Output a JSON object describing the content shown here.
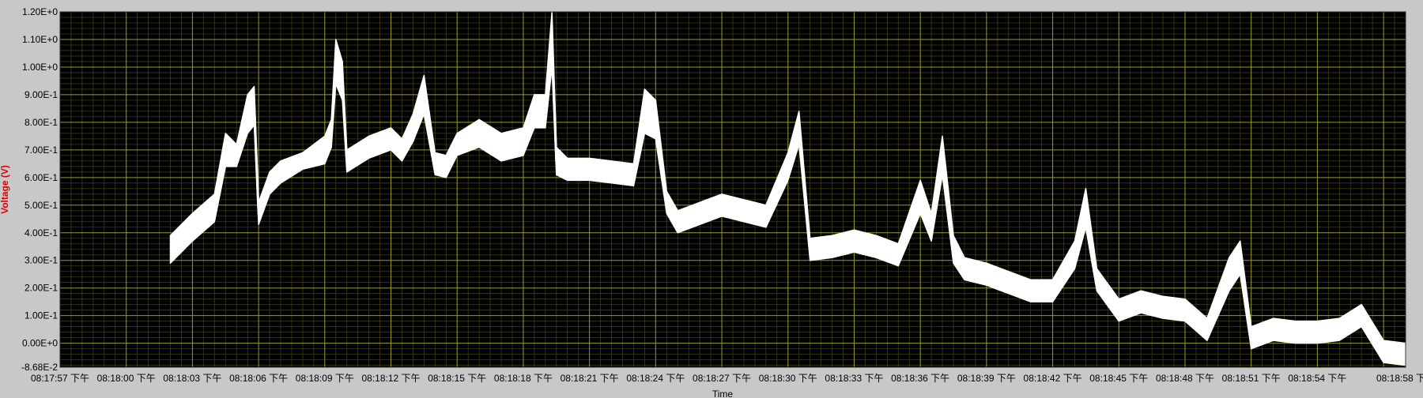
{
  "chart_data": {
    "type": "line",
    "title": "",
    "xlabel": "Time",
    "ylabel": "Voltage (V)",
    "ylim": [
      -0.0868,
      1.2
    ],
    "y_ticks": [
      {
        "value": 1.2,
        "label": "1.20E+0"
      },
      {
        "value": 1.1,
        "label": "1.10E+0"
      },
      {
        "value": 1.0,
        "label": "1.00E+0"
      },
      {
        "value": 0.9,
        "label": "9.00E-1"
      },
      {
        "value": 0.8,
        "label": "8.00E-1"
      },
      {
        "value": 0.7,
        "label": "7.00E-1"
      },
      {
        "value": 0.6,
        "label": "6.00E-1"
      },
      {
        "value": 0.5,
        "label": "5.00E-1"
      },
      {
        "value": 0.4,
        "label": "4.00E-1"
      },
      {
        "value": 0.3,
        "label": "3.00E-1"
      },
      {
        "value": 0.2,
        "label": "2.00E-1"
      },
      {
        "value": 0.1,
        "label": "1.00E-1"
      },
      {
        "value": 0.0,
        "label": "0.00E+0"
      },
      {
        "value": -0.0868,
        "label": "-8.68E-2"
      }
    ],
    "x_ticks": [
      "08:17:57 下午",
      "08:18:00 下午",
      "08:18:03 下午",
      "08:18:06 下午",
      "08:18:09 下午",
      "08:18:12 下午",
      "08:18:15 下午",
      "08:18:18 下午",
      "08:18:21 下午",
      "08:18:24 下午",
      "08:18:27 下午",
      "08:18:30 下午",
      "08:18:33 下午",
      "08:18:36 下午",
      "08:18:39 下午",
      "08:18:42 下午",
      "08:18:45 下午",
      "08:18:48 下午",
      "08:18:51 下午",
      "08:18:54 下午",
      "08:18:58 下午"
    ],
    "grid": true,
    "colors": {
      "background": "#000000",
      "grid_major": "#9a9a2a",
      "grid_minor": "#3e3e17",
      "trace": "#ffffff",
      "ylabel": "#e00000",
      "frame": "#c8c8c8"
    },
    "series": [
      {
        "trace_type": "noisy band",
        "x": [
          "08:18:02",
          "08:18:03",
          "08:18:04",
          "08:18:04.5",
          "08:18:05",
          "08:18:05.5",
          "08:18:05.8",
          "08:18:06",
          "08:18:06.5",
          "08:18:07",
          "08:18:08",
          "08:18:09",
          "08:18:09.3",
          "08:18:09.5",
          "08:18:09.8",
          "08:18:10",
          "08:18:11",
          "08:18:12",
          "08:18:12.5",
          "08:18:13",
          "08:18:13.5",
          "08:18:14",
          "08:18:14.5",
          "08:18:15",
          "08:18:16",
          "08:18:17",
          "08:18:18",
          "08:18:18.5",
          "08:18:19",
          "08:18:19.3",
          "08:18:19.5",
          "08:18:20",
          "08:18:21",
          "08:18:22",
          "08:18:23",
          "08:18:23.5",
          "08:18:24",
          "08:18:24.5",
          "08:18:25",
          "08:18:26",
          "08:18:27",
          "08:18:28",
          "08:18:29",
          "08:18:30",
          "08:18:30.5",
          "08:18:31",
          "08:18:32",
          "08:18:33",
          "08:18:34",
          "08:18:35",
          "08:18:36",
          "08:18:36.5",
          "08:18:37",
          "08:18:37.5",
          "08:18:38",
          "08:18:39",
          "08:18:40",
          "08:18:41",
          "08:18:42",
          "08:18:43",
          "08:18:43.5",
          "08:18:44",
          "08:18:45",
          "08:18:46",
          "08:18:47",
          "08:18:48",
          "08:18:49",
          "08:18:50",
          "08:18:50.5",
          "08:18:51",
          "08:18:52",
          "08:18:53",
          "08:18:54",
          "08:18:55",
          "08:18:56",
          "08:18:57",
          "08:18:58"
        ],
        "center": [
          0.34,
          0.42,
          0.49,
          0.7,
          0.68,
          0.83,
          0.86,
          0.47,
          0.58,
          0.62,
          0.66,
          0.7,
          0.76,
          1.02,
          0.95,
          0.66,
          0.71,
          0.74,
          0.7,
          0.78,
          0.9,
          0.65,
          0.64,
          0.72,
          0.76,
          0.71,
          0.73,
          0.84,
          0.84,
          1.1,
          0.66,
          0.63,
          0.63,
          0.62,
          0.61,
          0.84,
          0.81,
          0.51,
          0.44,
          0.47,
          0.5,
          0.48,
          0.46,
          0.64,
          0.78,
          0.34,
          0.35,
          0.37,
          0.35,
          0.32,
          0.53,
          0.42,
          0.68,
          0.34,
          0.27,
          0.25,
          0.22,
          0.19,
          0.19,
          0.32,
          0.49,
          0.23,
          0.12,
          0.15,
          0.13,
          0.12,
          0.05,
          0.25,
          0.31,
          0.02,
          0.05,
          0.04,
          0.04,
          0.05,
          0.1,
          -0.03,
          -0.04
        ],
        "band_halfwidth": [
          0.05,
          0.05,
          0.05,
          0.06,
          0.04,
          0.07,
          0.07,
          0.04,
          0.04,
          0.04,
          0.03,
          0.05,
          0.05,
          0.08,
          0.07,
          0.04,
          0.04,
          0.04,
          0.04,
          0.05,
          0.07,
          0.04,
          0.04,
          0.04,
          0.05,
          0.05,
          0.05,
          0.06,
          0.06,
          0.1,
          0.05,
          0.04,
          0.04,
          0.04,
          0.04,
          0.08,
          0.07,
          0.04,
          0.04,
          0.04,
          0.04,
          0.04,
          0.04,
          0.05,
          0.06,
          0.04,
          0.04,
          0.04,
          0.04,
          0.04,
          0.06,
          0.05,
          0.07,
          0.05,
          0.04,
          0.04,
          0.04,
          0.04,
          0.04,
          0.05,
          0.07,
          0.04,
          0.04,
          0.04,
          0.04,
          0.04,
          0.04,
          0.06,
          0.06,
          0.04,
          0.04,
          0.04,
          0.04,
          0.04,
          0.04,
          0.04,
          0.04
        ]
      }
    ]
  }
}
